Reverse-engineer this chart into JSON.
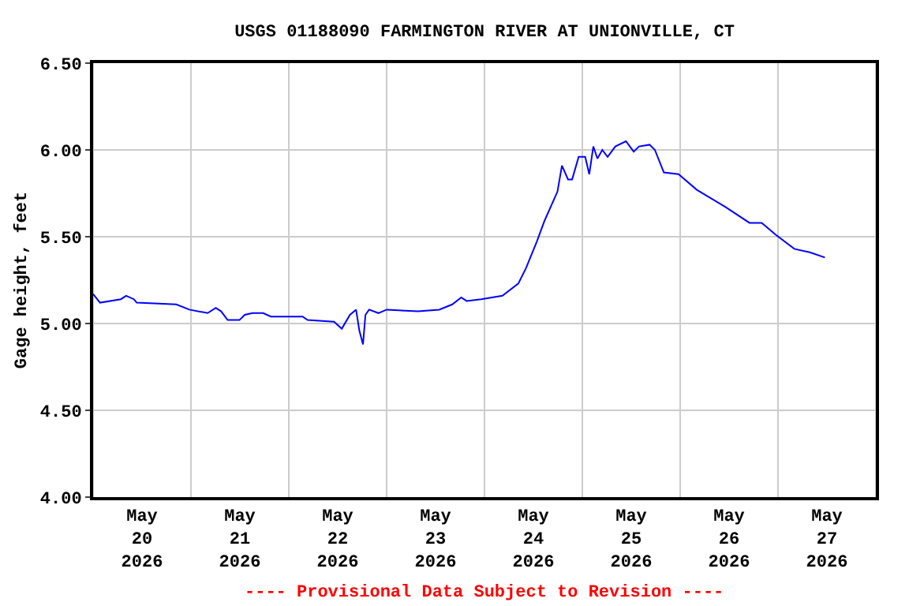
{
  "chart_data": {
    "type": "line",
    "title": "USGS 01188090 FARMINGTON RIVER AT UNIONVILLE, CT",
    "ylabel": "Gage height, feet",
    "annotations": [
      "---- Provisional Data Subject to Revision ----"
    ],
    "x": [
      "2026-05-20T00:00",
      "2026-05-20T01:42",
      "2026-05-20T06:48",
      "2026-05-20T08:06",
      "2026-05-20T10:00",
      "2026-05-20T10:42",
      "2026-05-20T20:24",
      "2026-05-20T23:36",
      "2026-05-21T04:06",
      "2026-05-21T06:06",
      "2026-05-21T07:24",
      "2026-05-21T09:00",
      "2026-05-21T11:54",
      "2026-05-21T13:12",
      "2026-05-21T15:06",
      "2026-05-21T17:42",
      "2026-05-21T19:36",
      "2026-05-22T03:24",
      "2026-05-22T04:36",
      "2026-05-22T11:06",
      "2026-05-22T13:00",
      "2026-05-22T15:00",
      "2026-05-22T16:30",
      "2026-05-22T17:18",
      "2026-05-22T18:12",
      "2026-05-22T18:48",
      "2026-05-22T19:42",
      "2026-05-22T22:00",
      "2026-05-23T00:00",
      "2026-05-23T07:42",
      "2026-05-23T12:54",
      "2026-05-23T16:06",
      "2026-05-23T18:18",
      "2026-05-23T19:36",
      "2026-05-23T23:12",
      "2026-05-24T04:24",
      "2026-05-24T08:18",
      "2026-05-24T10:12",
      "2026-05-24T12:48",
      "2026-05-24T14:42",
      "2026-05-24T17:54",
      "2026-05-24T19:00",
      "2026-05-24T20:30",
      "2026-05-24T21:30",
      "2026-05-24T23:06",
      "2026-05-25T00:42",
      "2026-05-25T01:42",
      "2026-05-25T02:42",
      "2026-05-25T03:42",
      "2026-05-25T04:54",
      "2026-05-25T06:12",
      "2026-05-25T08:06",
      "2026-05-25T10:42",
      "2026-05-25T12:36",
      "2026-05-25T13:54",
      "2026-05-25T16:30",
      "2026-05-25T17:48",
      "2026-05-25T20:00",
      "2026-05-25T23:36",
      "2026-05-26T04:06",
      "2026-05-26T11:12",
      "2026-05-26T17:00",
      "2026-05-26T20:00",
      "2026-05-26T23:30",
      "2026-05-27T04:00",
      "2026-05-27T07:48",
      "2026-05-27T11:30"
    ],
    "series": [
      {
        "color": "#0000ff",
        "values": [
          5.17,
          5.12,
          5.14,
          5.16,
          5.14,
          5.12,
          5.11,
          5.08,
          5.06,
          5.09,
          5.07,
          5.02,
          5.02,
          5.05,
          5.06,
          5.06,
          5.04,
          5.04,
          5.02,
          5.01,
          4.97,
          5.05,
          5.08,
          4.96,
          4.88,
          5.05,
          5.08,
          5.06,
          5.08,
          5.07,
          5.08,
          5.11,
          5.15,
          5.13,
          5.14,
          5.16,
          5.23,
          5.32,
          5.47,
          5.59,
          5.76,
          5.91,
          5.83,
          5.83,
          5.96,
          5.96,
          5.86,
          6.02,
          5.95,
          6.0,
          5.96,
          6.02,
          6.05,
          5.99,
          6.02,
          6.03,
          6.0,
          5.87,
          5.86,
          5.77,
          5.67,
          5.58,
          5.58,
          5.51,
          5.43,
          5.41,
          5.38
        ]
      }
    ],
    "xlim": [
      "2026-05-20T00:00",
      "2026-05-28T00:00"
    ],
    "xticks": [
      {
        "value": "2026-05-20T00:00",
        "label": null
      },
      {
        "value": "2026-05-20T12:00",
        "label": "May\n20\n2026"
      },
      {
        "value": "2026-05-21T00:00",
        "label": null
      },
      {
        "value": "2026-05-21T12:00",
        "label": "May\n21\n2026"
      },
      {
        "value": "2026-05-22T00:00",
        "label": null
      },
      {
        "value": "2026-05-22T12:00",
        "label": "May\n22\n2026"
      },
      {
        "value": "2026-05-23T00:00",
        "label": null
      },
      {
        "value": "2026-05-23T12:00",
        "label": "May\n23\n2026"
      },
      {
        "value": "2026-05-24T00:00",
        "label": null
      },
      {
        "value": "2026-05-24T12:00",
        "label": "May\n24\n2026"
      },
      {
        "value": "2026-05-25T00:00",
        "label": null
      },
      {
        "value": "2026-05-25T12:00",
        "label": "May\n25\n2026"
      },
      {
        "value": "2026-05-26T00:00",
        "label": null
      },
      {
        "value": "2026-05-26T12:00",
        "label": "May\n26\n2026"
      },
      {
        "value": "2026-05-27T00:00",
        "label": null
      },
      {
        "value": "2026-05-27T12:00",
        "label": "May\n27\n2026"
      },
      {
        "value": "2026-05-28T00:00",
        "label": null
      }
    ],
    "ylim": [
      4.0,
      6.5
    ],
    "yticks": [
      {
        "value": 4.0,
        "label": "4.00"
      },
      {
        "value": 4.5,
        "label": "4.50"
      },
      {
        "value": 5.0,
        "label": "5.00"
      },
      {
        "value": 5.5,
        "label": "5.50"
      },
      {
        "value": 6.0,
        "label": "6.00"
      },
      {
        "value": 6.5,
        "label": "6.50"
      }
    ],
    "grid": true,
    "marker": "none",
    "line_style": "solid"
  }
}
